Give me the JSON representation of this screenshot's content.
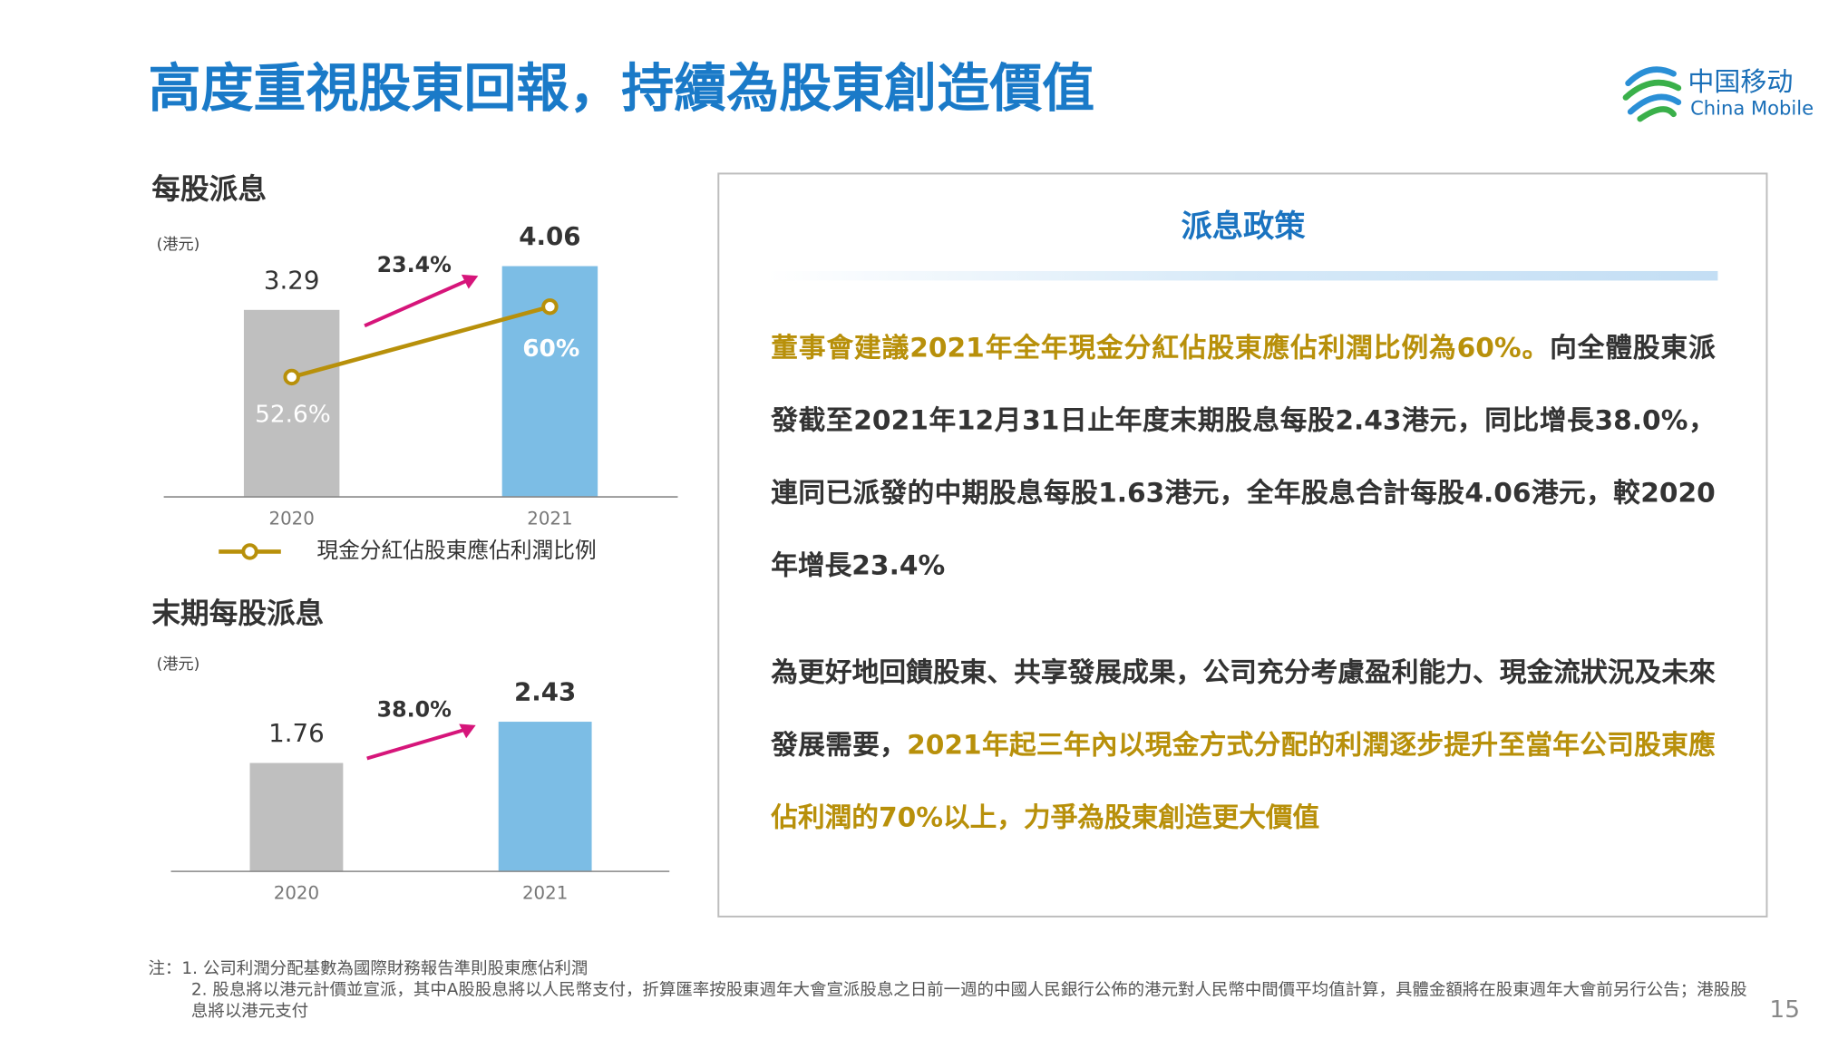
{
  "header": {
    "title": "高度重視股東回報，持續為股東創造價值",
    "logo_cn": "中国移动",
    "logo_en": "China Mobile"
  },
  "chart_data": [
    {
      "type": "bar",
      "title": "每股派息",
      "unit": "(港元)",
      "categories": [
        "2020",
        "2021"
      ],
      "values": [
        3.29,
        4.06
      ],
      "colors": [
        "#bfbfbf",
        "#7cbde5"
      ],
      "ylim": [
        0,
        4.35
      ],
      "growth_label": "23.4%",
      "series": [
        {
          "name": "現金分紅佔股東應佔利潤比例",
          "color": "#b8900a",
          "values": [
            52.6,
            60
          ],
          "value_labels": [
            "52.6%",
            "60%"
          ],
          "axis": "y2"
        }
      ],
      "y2lim": [
        40,
        66
      ]
    },
    {
      "type": "bar",
      "title": "末期每股派息",
      "unit": "(港元)",
      "categories": [
        "2020",
        "2021"
      ],
      "values": [
        1.76,
        2.43
      ],
      "colors": [
        "#bfbfbf",
        "#7cbde5"
      ],
      "ylim": [
        0,
        3.05
      ],
      "growth_label": "38.0%"
    }
  ],
  "panel": {
    "title": "派息政策",
    "paragraphs": [
      {
        "segments": [
          {
            "text": "董事會建議2021年全年現金分紅佔股東應佔利潤比例為60%。",
            "highlight": true
          },
          {
            "text": "向全體股東派發截至2021年12月31日止年度末期股息每股2.43港元，同比增長38.0%，連同已派發的中期股息每股1.63港元，全年股息合計每股4.06港元，較2020年增長23.4%",
            "highlight": false
          }
        ]
      },
      {
        "segments": [
          {
            "text": "為更好地回饋股東、共享發展成果，公司充分考慮盈利能力、現金流狀況及未來發展需要，",
            "highlight": false
          },
          {
            "text": "2021年起三年內以現金方式分配的利潤逐步提升至當年公司股東應佔利潤的70%以上，力爭為股東創造更大價值",
            "highlight": true
          }
        ]
      }
    ]
  },
  "footnotes": [
    "注：1. 公司利潤分配基數為國際財務報告準則股東應佔利潤",
    "2. 股息將以港元計價並宣派，其中A股股息將以人民幣支付，折算匯率按股東週年大會宣派股息之日前一週的中國人民銀行公佈的港元對人民幣中間價平均值計算，具體金額將在股東週年大會前另行公告；港股股息將以港元支付"
  ],
  "page_number": "15"
}
